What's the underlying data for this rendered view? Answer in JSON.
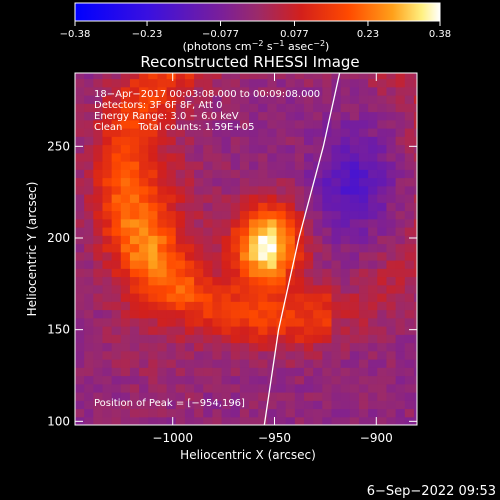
{
  "chart_data": {
    "type": "heatmap",
    "title": "Reconstructed RHESSI Image",
    "xlabel": "Heliocentric X (arcsec)",
    "ylabel": "Heliocentric Y (arcsec)",
    "xlim": [
      -1048,
      -880
    ],
    "ylim": [
      98,
      290
    ],
    "xticks": [
      {
        "value": -1000,
        "label": "−1000"
      },
      {
        "value": -950,
        "label": "−950"
      },
      {
        "value": -900,
        "label": "−900"
      }
    ],
    "yticks": [
      {
        "value": 100,
        "label": "100"
      },
      {
        "value": 150,
        "label": "150"
      },
      {
        "value": 200,
        "label": "200"
      },
      {
        "value": 250,
        "label": "250"
      }
    ],
    "colorbar": {
      "min": -0.38,
      "max": 0.38,
      "ticks": [
        {
          "value": -0.38,
          "label": "−0.38"
        },
        {
          "value": -0.23,
          "label": "−0.23"
        },
        {
          "value": -0.077,
          "label": "−0.077"
        },
        {
          "value": 0.077,
          "label": "0.077"
        },
        {
          "value": 0.23,
          "label": "0.23"
        },
        {
          "value": 0.38,
          "label": "0.38"
        }
      ],
      "unit_main": "(photons cm",
      "unit_sup1": "−2",
      "unit_mid": " s",
      "unit_sup2": "−1",
      "unit_mid2": " asec",
      "unit_sup3": "−2",
      "unit_end": ")"
    },
    "annotations": {
      "line1": "18−Apr−2017 00:03:08.000 to 00:09:08.000",
      "line2": "Detectors: 3F 6F 8F, Att 0",
      "line3": "Energy Range: 3.0 − 6.0 keV",
      "line4": "Clean     Total counts: 1.59E+05",
      "peak": "Position of Peak = [−954,196]"
    },
    "peak": {
      "x": -954,
      "y": 196
    },
    "limb_curve": [
      [
        -955,
        98
      ],
      [
        -948,
        150
      ],
      [
        -938,
        200
      ],
      [
        -926,
        250
      ],
      [
        -918,
        290
      ]
    ],
    "grid": false
  },
  "footer": {
    "date": "6−Sep−2022 09:53"
  },
  "colors": {
    "background": "#000000",
    "axis": "#ffffff",
    "limb": "#ffffff"
  }
}
